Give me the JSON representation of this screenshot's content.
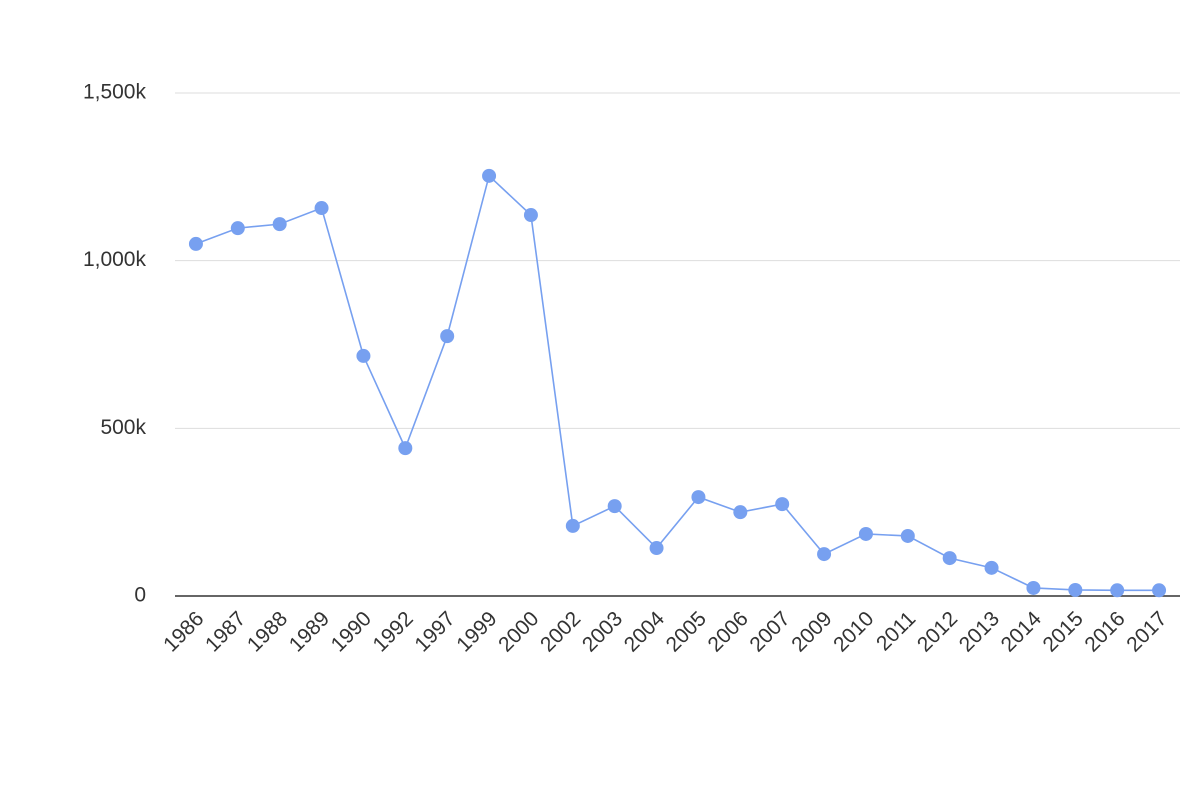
{
  "chart_data": {
    "type": "line",
    "categories": [
      "1986",
      "1987",
      "1988",
      "1989",
      "1990",
      "1992",
      "1997",
      "1999",
      "2000",
      "2002",
      "2003",
      "2004",
      "2005",
      "2006",
      "2007",
      "2009",
      "2010",
      "2011",
      "2012",
      "2013",
      "2014",
      "2015",
      "2016",
      "2017"
    ],
    "series": [
      {
        "color": "#77a0f0",
        "values": [
          1050000,
          1097000,
          1109000,
          1157000,
          716000,
          441000,
          775000,
          1253000,
          1136000,
          209000,
          268000,
          143000,
          295000,
          250000,
          274000,
          125000,
          185000,
          179000,
          113000,
          84000,
          24000,
          18000,
          17000,
          17000
        ]
      }
    ],
    "ylim": [
      0,
      1500000
    ],
    "yticks": [
      0,
      {
        "value": 500000,
        "label": "500k"
      },
      {
        "value": 1000000,
        "label": "1,000k"
      },
      {
        "value": 1500000,
        "label": "1,500k"
      }
    ],
    "grid": true
  }
}
